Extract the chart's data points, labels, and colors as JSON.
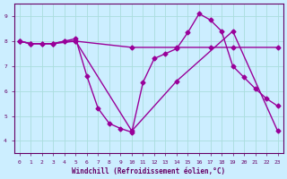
{
  "xlabel": "Windchill (Refroidissement éolien,°C)",
  "bg_color": "#cceeff",
  "grid_color": "#aadddd",
  "line_color": "#990099",
  "xlim": [
    -0.5,
    23.5
  ],
  "ylim": [
    3.5,
    9.5
  ],
  "yticks": [
    4,
    5,
    6,
    7,
    8,
    9
  ],
  "xticks": [
    0,
    1,
    2,
    3,
    4,
    5,
    6,
    7,
    8,
    9,
    10,
    11,
    12,
    13,
    14,
    15,
    16,
    17,
    18,
    19,
    20,
    21,
    22,
    23
  ],
  "line1_x": [
    0,
    1,
    2,
    3,
    4,
    5,
    6,
    7,
    8,
    9,
    10,
    11,
    12,
    13,
    14,
    15,
    16,
    17,
    18,
    19,
    20,
    21,
    22,
    23
  ],
  "line1_y": [
    8.0,
    7.9,
    7.9,
    7.9,
    8.0,
    8.1,
    6.6,
    5.3,
    4.7,
    4.5,
    4.35,
    6.35,
    7.3,
    7.5,
    7.7,
    8.35,
    9.1,
    8.85,
    8.4,
    7.0,
    6.55,
    6.1,
    5.7,
    5.4
  ],
  "line2_x": [
    0,
    1,
    2,
    3,
    4,
    5,
    10,
    14,
    17,
    19,
    23
  ],
  "line2_y": [
    8.0,
    7.9,
    7.9,
    7.9,
    8.0,
    8.0,
    7.75,
    7.75,
    7.75,
    7.75,
    7.75
  ],
  "line3_x": [
    0,
    1,
    3,
    5,
    10,
    14,
    19,
    23
  ],
  "line3_y": [
    8.0,
    7.9,
    7.9,
    8.0,
    4.4,
    6.4,
    8.4,
    4.4
  ],
  "marker": "D",
  "markersize": 2.5,
  "linewidth": 1.0
}
